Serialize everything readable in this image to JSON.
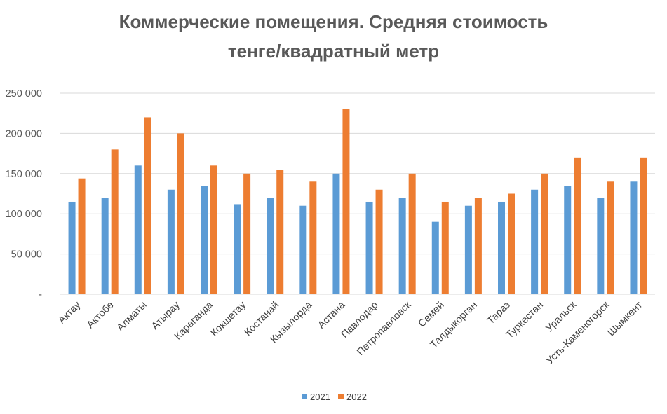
{
  "chart_data": {
    "type": "bar",
    "title_line1": "Коммерческие помещения. Средняя стоимость",
    "title_line2": "тенге/квадратный метр",
    "categories": [
      "Актау",
      "Актобе",
      "Алматы",
      "Атырау",
      "Караганда",
      "Кокшетау",
      "Костанай",
      "Кызылорда",
      "Астана",
      "Павлодар",
      "Петропавловск",
      "Семей",
      "Талдыкорган",
      "Тараз",
      "Туркестан",
      "Уральск",
      "Усть-Каменогорск",
      "Шымкент"
    ],
    "series": [
      {
        "name": "2021",
        "color": "#5b9bd5",
        "values": [
          115000,
          120000,
          160000,
          130000,
          135000,
          112000,
          120000,
          110000,
          150000,
          115000,
          120000,
          90000,
          110000,
          115000,
          130000,
          135000,
          120000,
          140000
        ]
      },
      {
        "name": "2022",
        "color": "#ed7d31",
        "values": [
          144000,
          180000,
          220000,
          200000,
          160000,
          150000,
          155000,
          140000,
          230000,
          130000,
          150000,
          115000,
          120000,
          125000,
          150000,
          170000,
          140000,
          170000
        ]
      }
    ],
    "ylim": [
      0,
      250000
    ],
    "yticks": [
      0,
      50000,
      100000,
      150000,
      200000,
      250000
    ],
    "ytick_labels": [
      "-",
      "50 000",
      "100 000",
      "150 000",
      "200 000",
      "250 000"
    ],
    "grid": true,
    "legend_position": "bottom"
  }
}
